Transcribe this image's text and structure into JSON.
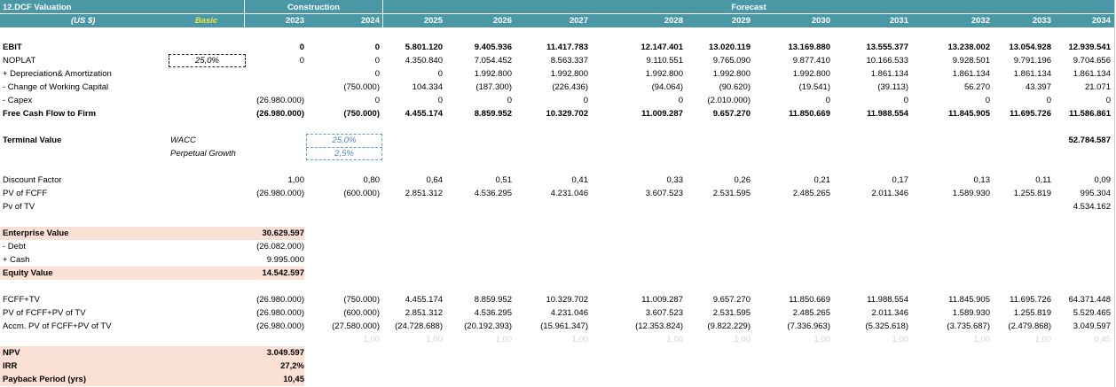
{
  "header": {
    "sheet_title": "12.DCF Valuation",
    "currency": "(US $)",
    "scenario": "Basic",
    "construction_label": "Construction",
    "forecast_label": "Forecast",
    "years": [
      "2023",
      "2024",
      "2025",
      "2026",
      "2027",
      "2028",
      "2029",
      "2030",
      "2031",
      "2032",
      "2033",
      "2034"
    ]
  },
  "rows": {
    "ebit": {
      "label": "EBIT",
      "values": [
        "0",
        "0",
        "5.801.120",
        "9.405.936",
        "11.417.783",
        "12.147.401",
        "13.020.119",
        "13.169.880",
        "13.555.377",
        "13.238.002",
        "13.054.928",
        "12.939.541"
      ]
    },
    "noplat": {
      "label": "NOPLAT",
      "tax": "25,0%",
      "values": [
        "0",
        "0",
        "4.350.840",
        "7.054.452",
        "8.563.337",
        "9.110.551",
        "9.765.090",
        "9.877.410",
        "10.166.533",
        "9.928.501",
        "9.791.196",
        "9.704.656"
      ]
    },
    "dep": {
      "label": " + Depreciation& Amortization",
      "values": [
        "",
        "0",
        "0",
        "1.992.800",
        "1.992.800",
        "1.992.800",
        "1.992.800",
        "1.992.800",
        "1.861.134",
        "1.861.134",
        "1.861.134",
        "1.861.134"
      ]
    },
    "wc": {
      "label": " - Change of Working Capital",
      "values": [
        "",
        "(750.000)",
        "104.334",
        "(187.300)",
        "(226.436)",
        "(94.064)",
        "(90.620)",
        "(19.541)",
        "(39.113)",
        "56.270",
        "43.397",
        "21.071"
      ]
    },
    "capex": {
      "label": " - Capex",
      "values": [
        "(26.980.000)",
        "0",
        "0",
        "0",
        "0",
        "0",
        "(2.010.000)",
        "0",
        "0",
        "0",
        "0",
        "0"
      ]
    },
    "fcff": {
      "label": "Free Cash Flow to Firm",
      "values": [
        "(26.980.000)",
        "(750.000)",
        "4.455.174",
        "8.859.952",
        "10.329.702",
        "11.009.287",
        "9.657.270",
        "11.850.669",
        "11.988.554",
        "11.845.905",
        "11.695.726",
        "11.586.861"
      ]
    }
  },
  "terminal": {
    "label": "Terminal Value",
    "wacc_label": "WACC",
    "wacc": "25,0%",
    "growth_label": "Perpetual Growth",
    "growth": "2,5%",
    "value": "52.784.587"
  },
  "discount": {
    "df": {
      "label": "Discount Factor",
      "values": [
        "1,00",
        "0,80",
        "0,64",
        "0,51",
        "0,41",
        "0,33",
        "0,26",
        "0,21",
        "0,17",
        "0,13",
        "0,11",
        "0,09"
      ]
    },
    "pv_fcff": {
      "label": "PV of FCFF",
      "values": [
        "(26.980.000)",
        "(600.000)",
        "2.851.312",
        "4.536.295",
        "4.231.046",
        "3.607.523",
        "2.531.595",
        "2.485.265",
        "2.011.346",
        "1.589.930",
        "1.255.819",
        "995.304"
      ]
    },
    "pv_tv": {
      "label": "Pv of TV",
      "value": "4.534.162"
    }
  },
  "valuation": {
    "ev_label": "Enterprise Value",
    "ev": "30.629.597",
    "debt_label": " - Debt",
    "debt": "(26.082.000)",
    "cash_label": " + Cash",
    "cash": "9.995.000",
    "equity_label": "Equity Value",
    "equity": "14.542.597"
  },
  "cum": {
    "fcff_tv": {
      "label": "FCFF+TV",
      "values": [
        "(26.980.000)",
        "(750.000)",
        "4.455.174",
        "8.859.952",
        "10.329.702",
        "11.009.287",
        "9.657.270",
        "11.850.669",
        "11.988.554",
        "11.845.905",
        "11.695.726",
        "64.371.448"
      ]
    },
    "pv_sum": {
      "label": "PV of FCFF+PV of TV",
      "values": [
        "(26.980.000)",
        "(600.000)",
        "2.851.312",
        "4.536.295",
        "4.231.046",
        "3.607.523",
        "2.531.595",
        "2.485.265",
        "2.011.346",
        "1.589.930",
        "1.255.819",
        "5.529.465"
      ]
    },
    "accm": {
      "label": "Accm. PV of FCFF+PV of TV",
      "values": [
        "(26.980.000)",
        "(27.580.000)",
        "(24.728.688)",
        "(20.192.393)",
        "(15.961.347)",
        "(12.353.824)",
        "(9.822.229)",
        "(7.336.963)",
        "(5.325.618)",
        "(3.735.687)",
        "(2.479.868)",
        "3.049.597"
      ]
    },
    "helper": {
      "values": [
        "",
        "1,00",
        "1,00",
        "1,00",
        "1,00",
        "1,00",
        "1,00",
        "1,00",
        "1,00",
        "1,00",
        "1,00",
        "0,45"
      ]
    }
  },
  "results": {
    "npv_label": "NPV",
    "npv": "3.049.597",
    "irr_label": "IRR",
    "irr": "27,2%",
    "payback_label": "Payback Period (yrs)",
    "payback": "10,45"
  }
}
